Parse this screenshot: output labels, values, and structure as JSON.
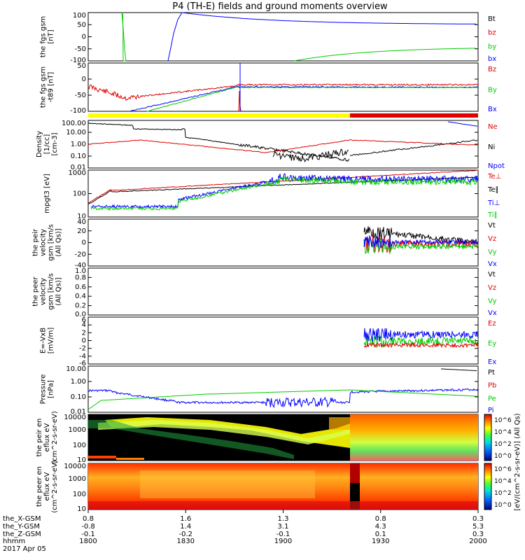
{
  "title": "P4 (TH-E) fields and ground moments overview",
  "colors": {
    "black": "#000000",
    "red": "#e00000",
    "green": "#00cc00",
    "blue": "#0000ff",
    "yellow": "#ffff00"
  },
  "chart_data": {
    "type": "line",
    "x_time_ticks": [
      "1800",
      "1830",
      "1900",
      "1930",
      "2000"
    ],
    "x_axis_rows": [
      {
        "label": "the_X-GSM",
        "values": [
          "0.8",
          "1.6",
          "1.3",
          "0.8",
          "0.3"
        ]
      },
      {
        "label": "the_Y-GSM",
        "values": [
          "-0.8",
          "1.4",
          "3.1",
          "4.3",
          "5.3"
        ]
      },
      {
        "label": "the_Z-GSM",
        "values": [
          "-0.1",
          "-0.2",
          "-0.1",
          "0.1",
          "0.3"
        ]
      },
      {
        "label": "hhmm",
        "values": [
          "1800",
          "1830",
          "1900",
          "1930",
          "2000"
        ]
      }
    ],
    "date": "2017 Apr 05",
    "panels": [
      {
        "id": "fgs",
        "ylabel": "the fgs gsm [nT]",
        "yticks": [
          "100",
          "50",
          "0",
          "-50",
          "-100"
        ],
        "ylim": [
          -100,
          100
        ],
        "legend": [
          {
            "text": "Bt",
            "color": "#000000"
          },
          {
            "text": "bz",
            "color": "#e00000"
          },
          {
            "text": "by",
            "color": "#00cc00"
          },
          {
            "text": "bx",
            "color": "#0000ff"
          }
        ]
      },
      {
        "id": "fgs-t89",
        "ylabel": "the fgs gsm -t89 [nT]",
        "yticks": [
          "50",
          "0",
          "-50",
          "-100"
        ],
        "ylim": [
          -125,
          100
        ],
        "legend": [
          {
            "text": "Bz",
            "color": "#e00000"
          },
          {
            "text": "By",
            "color": "#00cc00"
          },
          {
            "text": "Bx",
            "color": "#0000ff"
          }
        ]
      },
      {
        "id": "density",
        "ylabel": "Density [1/cc] [cm-3]",
        "yticks": [
          "100.00",
          "10.00",
          "1.00",
          "0.10",
          "0.01"
        ],
        "log": true,
        "legend": [
          {
            "text": "Ne",
            "color": "#e00000"
          },
          {
            "text": "Ni",
            "color": "#000000"
          },
          {
            "text": "Npot",
            "color": "#0000ff"
          }
        ]
      },
      {
        "id": "temp",
        "ylabel": "mpgt3 [eV]",
        "yticks": [
          "1000",
          "100",
          "10"
        ],
        "log": true,
        "legend": [
          {
            "text": "Te⊥",
            "color": "#e00000"
          },
          {
            "text": "Te∥",
            "color": "#000000"
          },
          {
            "text": "Ti⊥",
            "color": "#0000ff"
          },
          {
            "text": "Ti∥",
            "color": "#00cc00"
          }
        ]
      },
      {
        "id": "peir-vel",
        "ylabel": "the peir velocity gsm [km/s (All Qs)]",
        "yticks": [
          "40",
          "20",
          "0",
          "-20",
          "-40"
        ],
        "ylim": [
          -40,
          40
        ],
        "legend": [
          {
            "text": "Vt",
            "color": "#000000"
          },
          {
            "text": "Vz",
            "color": "#e00000"
          },
          {
            "text": "Vy",
            "color": "#00cc00"
          },
          {
            "text": "Vx",
            "color": "#0000ff"
          }
        ]
      },
      {
        "id": "peer-vel",
        "ylabel": "the peer velocity gsm [km/s (All Qs)]",
        "yticks": [
          "1.0",
          "0.8",
          "0.6",
          "0.4",
          "0.2",
          "0.0"
        ],
        "ylim": [
          0,
          1
        ],
        "legend": [
          {
            "text": "Vt",
            "color": "#000000"
          },
          {
            "text": "Vz",
            "color": "#e00000"
          },
          {
            "text": "Vy",
            "color": "#00cc00"
          },
          {
            "text": "Vx",
            "color": "#0000ff"
          }
        ]
      },
      {
        "id": "efield",
        "ylabel": "E=-VxB [mV/m]",
        "yticks": [
          "6",
          "4",
          "2",
          "0",
          "-2",
          "-4",
          "-6"
        ],
        "ylim": [
          -6,
          6
        ],
        "legend": [
          {
            "text": "Ez",
            "color": "#e00000"
          },
          {
            "text": "Ey",
            "color": "#00cc00"
          },
          {
            "text": "Ex",
            "color": "#0000ff"
          }
        ]
      },
      {
        "id": "pressure",
        "ylabel": "Pressure [nPa]",
        "yticks": [
          "10.00",
          "1.00",
          "0.10",
          "0.01"
        ],
        "log": true,
        "legend": [
          {
            "text": "Pt",
            "color": "#000000"
          },
          {
            "text": "Pb",
            "color": "#e00000"
          },
          {
            "text": "Pe",
            "color": "#00cc00"
          },
          {
            "text": "Pi",
            "color": "#0000ff"
          }
        ]
      },
      {
        "id": "peir-spec",
        "ylabel": "the peir en eflux eV (cm^2-s-sr-eV)",
        "yticks": [
          "10000",
          "1000",
          "100",
          "10"
        ],
        "log": true,
        "type": "heatmap"
      },
      {
        "id": "peer-spec",
        "ylabel": "the peer en eflux eV (cm^2-s-sr-eV)",
        "yticks": [
          "10000",
          "1000",
          "100",
          "10"
        ],
        "log": true,
        "type": "heatmap"
      }
    ],
    "colorbar": {
      "label": "[eV/(cm^2-s-sr-eV)] (All Qs)",
      "ticks_top": [
        "10^6",
        "10^4",
        "10^2",
        "10^0"
      ],
      "ticks_bottom": [
        "10^6",
        "10^4",
        "10^2",
        "10^0"
      ]
    }
  }
}
